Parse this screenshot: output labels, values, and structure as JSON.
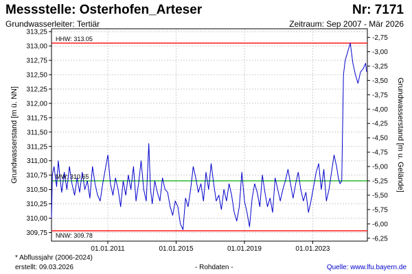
{
  "header": {
    "title": "Messstelle: Osterhofen_Arteser",
    "nr": "Nr: 7171",
    "subtitle": "Grundwasserleiter: Tertiär",
    "period": "Zeitraum: Sep 2007 - Mär 2026"
  },
  "footer": {
    "footnote": "* Abflussjahr (2006-2024)",
    "created": "erstellt:  09.03.2026",
    "raw": "- Rohdaten -",
    "source": "Quelle: www.lfu.bayern.de"
  },
  "colors": {
    "series": "#0000cc",
    "hhw_nnw": "#ff0000",
    "mw": "#00aa00",
    "grid": "#cccccc"
  },
  "chart_data": {
    "type": "line",
    "xlabel": "",
    "ylabel": "Grundwasserstand [m ü. NN]",
    "y2label": "Grundwasserstand [m u. Gelände]",
    "xlim": [
      2007.7,
      2026.2
    ],
    "ylim": [
      309.6,
      313.3
    ],
    "y2lim": [
      -6.3,
      -2.6
    ],
    "grid": true,
    "x_ticks": [
      {
        "x": 2011.0,
        "label": "01.01.2011"
      },
      {
        "x": 2015.0,
        "label": "01.01.2015"
      },
      {
        "x": 2019.0,
        "label": "01.01.2019"
      },
      {
        "x": 2023.0,
        "label": "01.01.2023"
      }
    ],
    "y_ticks": [
      "313,25",
      "313,00",
      "312,75",
      "312,50",
      "312,25",
      "312,00",
      "311,75",
      "311,50",
      "311,25",
      "311,00",
      "310,75",
      "310,50",
      "310,25",
      "310,00",
      "309,75"
    ],
    "y_tick_values": [
      313.25,
      313.0,
      312.75,
      312.5,
      312.25,
      312.0,
      311.75,
      311.5,
      311.25,
      311.0,
      310.75,
      310.5,
      310.25,
      310.0,
      309.75
    ],
    "y2_ticks": [
      "-6,25",
      "-6,00",
      "-5,75",
      "-5,50",
      "-5,25",
      "-5,00",
      "-4,75",
      "-4,50",
      "-4,25",
      "-4,00",
      "-3,75",
      "-3,50",
      "-3,25",
      "-3,00",
      "-2,75"
    ],
    "y2_tick_values": [
      -6.25,
      -6.0,
      -5.75,
      -5.5,
      -5.25,
      -5.0,
      -4.75,
      -4.5,
      -4.25,
      -4.0,
      -3.75,
      -3.5,
      -3.25,
      -3.0,
      -2.75
    ],
    "reference_lines": [
      {
        "label": "HHW: 313.05",
        "value": 313.05
      },
      {
        "label": "MW: 310.65",
        "value": 310.65
      },
      {
        "label": "NNW: 309.78",
        "value": 309.78
      }
    ],
    "series": [
      {
        "x": [
          2007.7,
          2007.75,
          2007.85,
          2008.0,
          2008.1,
          2008.2,
          2008.3,
          2008.45,
          2008.6,
          2008.75,
          2008.9,
          2009.05,
          2009.2,
          2009.35,
          2009.5,
          2009.65,
          2009.8,
          2009.95,
          2010.1,
          2010.25,
          2010.4,
          2010.55,
          2010.7,
          2010.85,
          2011.0,
          2011.15,
          2011.3,
          2011.45,
          2011.6,
          2011.75,
          2011.9,
          2012.05,
          2012.2,
          2012.35,
          2012.5,
          2012.65,
          2012.8,
          2012.95,
          2013.1,
          2013.25,
          2013.4,
          2013.5,
          2013.6,
          2013.75,
          2013.9,
          2014.05,
          2014.2,
          2014.35,
          2014.5,
          2014.65,
          2014.8,
          2014.95,
          2015.1,
          2015.25,
          2015.4,
          2015.55,
          2015.7,
          2015.85,
          2016.0,
          2016.15,
          2016.3,
          2016.45,
          2016.6,
          2016.75,
          2016.9,
          2017.05,
          2017.2,
          2017.35,
          2017.5,
          2017.65,
          2017.8,
          2017.95,
          2018.1,
          2018.25,
          2018.4,
          2018.55,
          2018.7,
          2018.85,
          2019.0,
          2019.15,
          2019.3,
          2019.45,
          2019.6,
          2019.75,
          2019.9,
          2020.05,
          2020.2,
          2020.35,
          2020.5,
          2020.65,
          2020.8,
          2020.95,
          2021.1,
          2021.25,
          2021.4,
          2021.55,
          2021.7,
          2021.85,
          2022.0,
          2022.15,
          2022.3,
          2022.45,
          2022.6,
          2022.75,
          2022.9,
          2023.05,
          2023.2,
          2023.35,
          2023.5,
          2023.65,
          2023.8,
          2023.95,
          2024.1,
          2024.25,
          2024.4,
          2024.5,
          2024.6,
          2024.7,
          2024.8,
          2024.9,
          2025.0,
          2025.1,
          2025.2,
          2025.35,
          2025.5,
          2025.65,
          2025.8,
          2025.95,
          2026.1,
          2026.15
        ],
        "y": [
          310.0,
          310.75,
          310.9,
          310.55,
          311.0,
          310.7,
          310.45,
          310.8,
          310.5,
          310.9,
          310.6,
          310.4,
          310.7,
          310.45,
          310.8,
          310.5,
          310.65,
          310.35,
          310.9,
          310.6,
          310.4,
          310.3,
          310.6,
          310.85,
          311.1,
          310.6,
          310.4,
          310.7,
          310.5,
          310.2,
          310.65,
          310.4,
          310.75,
          310.5,
          310.9,
          310.3,
          310.6,
          311.0,
          310.5,
          310.3,
          311.3,
          310.5,
          310.25,
          310.65,
          310.45,
          310.3,
          310.7,
          310.5,
          310.45,
          310.2,
          310.05,
          310.3,
          310.2,
          309.9,
          309.8,
          310.35,
          310.2,
          310.5,
          310.9,
          310.7,
          310.45,
          310.6,
          310.3,
          310.8,
          310.5,
          310.95,
          310.6,
          310.3,
          310.4,
          310.15,
          310.5,
          310.3,
          310.6,
          310.4,
          310.1,
          309.95,
          310.2,
          310.8,
          310.3,
          310.1,
          309.85,
          310.35,
          310.6,
          310.45,
          310.2,
          310.75,
          310.45,
          310.2,
          310.35,
          310.1,
          310.7,
          310.5,
          310.3,
          310.5,
          310.65,
          310.85,
          310.6,
          310.35,
          310.6,
          310.8,
          310.5,
          310.3,
          310.45,
          310.1,
          310.3,
          310.55,
          310.8,
          310.95,
          310.5,
          310.85,
          310.3,
          310.5,
          310.8,
          311.1,
          310.9,
          310.7,
          310.6,
          310.65,
          312.5,
          312.75,
          312.85,
          312.95,
          313.05,
          312.7,
          312.5,
          312.35,
          312.55,
          312.6,
          312.7,
          312.55
        ]
      }
    ]
  }
}
